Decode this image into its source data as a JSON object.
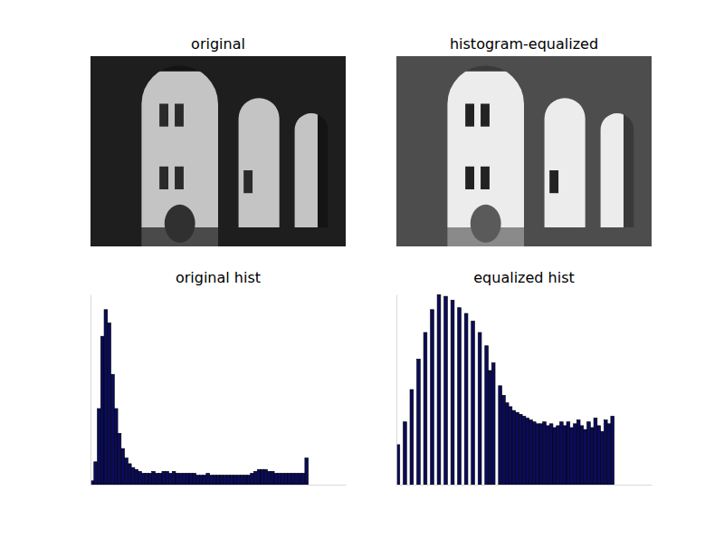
{
  "chart_data": [
    {
      "type": "image",
      "title": "original"
    },
    {
      "type": "image",
      "title": "histogram-equalized"
    },
    {
      "type": "histogram",
      "title": "original hist",
      "color": "#0b0b5a",
      "tick_labels": false,
      "xlim": [
        0,
        300
      ],
      "ylim": [
        0,
        100
      ],
      "bins": [
        0,
        4,
        8,
        12,
        16,
        20,
        24,
        28,
        32,
        36,
        40,
        44,
        48,
        52,
        56,
        60,
        64,
        68,
        72,
        76,
        80,
        84,
        88,
        92,
        96,
        100,
        104,
        108,
        112,
        116,
        120,
        124,
        128,
        132,
        136,
        140,
        144,
        148,
        152,
        156,
        160,
        164,
        168,
        172,
        176,
        180,
        184,
        188,
        192,
        196,
        200,
        204,
        208,
        212,
        216,
        220,
        224,
        228,
        232,
        236,
        240,
        244,
        248,
        252,
        256
      ],
      "values": [
        2,
        12,
        40,
        78,
        92,
        85,
        58,
        40,
        27,
        19,
        14,
        11,
        9,
        8,
        7,
        6,
        6,
        6,
        7,
        6,
        6,
        7,
        7,
        6,
        7,
        6,
        6,
        6,
        6,
        6,
        6,
        5,
        5,
        5,
        6,
        5,
        5,
        5,
        5,
        5,
        5,
        5,
        5,
        5,
        5,
        5,
        5,
        6,
        7,
        8,
        8,
        8,
        7,
        7,
        6,
        6,
        6,
        6,
        6,
        6,
        6,
        6,
        6,
        14
      ]
    },
    {
      "type": "histogram",
      "title": "equalized hist",
      "color": "#0b0b5a",
      "tick_labels": false,
      "xlim": [
        0,
        300
      ],
      "ylim": [
        0,
        100
      ],
      "bins": [
        0,
        4,
        8,
        12,
        16,
        20,
        24,
        28,
        32,
        36,
        40,
        44,
        48,
        52,
        56,
        60,
        64,
        68,
        72,
        76,
        80,
        84,
        88,
        92,
        96,
        100,
        104,
        108,
        112,
        116,
        120,
        124,
        128,
        132,
        136,
        140,
        144,
        148,
        152,
        156,
        160,
        164,
        168,
        172,
        176,
        180,
        184,
        188,
        192,
        196,
        200,
        204,
        208,
        212,
        216,
        220,
        224,
        228,
        232,
        236,
        240,
        244,
        248,
        252,
        256
      ],
      "values": [
        21,
        0,
        33,
        0,
        50,
        0,
        66,
        0,
        80,
        0,
        92,
        0,
        100,
        0,
        99,
        0,
        97,
        0,
        93,
        0,
        90,
        0,
        86,
        0,
        80,
        0,
        73,
        60,
        64,
        0,
        52,
        47,
        43,
        41,
        39,
        38,
        37,
        36,
        35,
        34,
        33,
        32,
        32,
        33,
        31,
        32,
        30,
        31,
        33,
        31,
        33,
        30,
        32,
        34,
        31,
        29,
        33,
        30,
        35,
        31,
        28,
        34,
        32,
        36
      ]
    }
  ]
}
